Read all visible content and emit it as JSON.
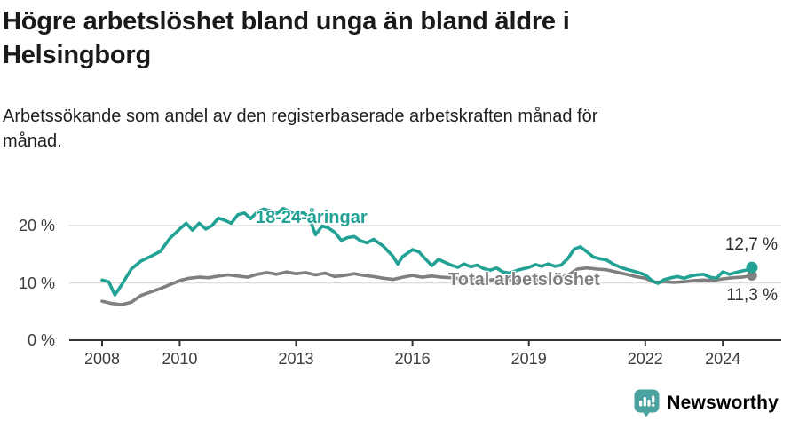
{
  "header": {
    "title": "Högre arbetslöshet bland unga än bland äldre i\nHelsingborg",
    "subtitle": "Arbetssökande som andel av den registerbaserade arbetskraften månad för\nmånad."
  },
  "chart_data": {
    "type": "line",
    "title": "Högre arbetslöshet bland unga än bland äldre i Helsingborg",
    "xlabel": "",
    "ylabel": "Arbetssökande som andel av den registerbaserade arbetskraften",
    "grid": true,
    "legend_position": "inline-labels-on-lines",
    "x_axis": {
      "range": [
        2007.2,
        2025.5
      ],
      "ticks": [
        {
          "label": "2008",
          "year": 2008
        },
        {
          "label": "2010",
          "year": 2010
        },
        {
          "label": "2013",
          "year": 2013
        },
        {
          "label": "2016",
          "year": 2016
        },
        {
          "label": "2019",
          "year": 2019
        },
        {
          "label": "2022",
          "year": 2022
        },
        {
          "label": "2024",
          "year": 2024
        }
      ]
    },
    "y_axis": {
      "range": [
        0,
        25
      ],
      "unit": "%",
      "ticks": [
        {
          "label": "0 %",
          "value": 0
        },
        {
          "label": "10 %",
          "value": 10
        },
        {
          "label": "20 %",
          "value": 20
        }
      ]
    },
    "series": [
      {
        "name": "Total arbetslöshet",
        "color": "#7f7f7f",
        "end_label": "11,3 %",
        "end_value": 11.3,
        "points": [
          [
            2008.0,
            6.8
          ],
          [
            2008.25,
            6.4
          ],
          [
            2008.5,
            6.2
          ],
          [
            2008.75,
            6.6
          ],
          [
            2009.0,
            7.8
          ],
          [
            2009.25,
            8.4
          ],
          [
            2009.5,
            9.0
          ],
          [
            2009.75,
            9.7
          ],
          [
            2010.0,
            10.4
          ],
          [
            2010.25,
            10.8
          ],
          [
            2010.5,
            11.0
          ],
          [
            2010.75,
            10.9
          ],
          [
            2011.0,
            11.2
          ],
          [
            2011.25,
            11.4
          ],
          [
            2011.5,
            11.2
          ],
          [
            2011.75,
            11.0
          ],
          [
            2012.0,
            11.5
          ],
          [
            2012.25,
            11.8
          ],
          [
            2012.5,
            11.5
          ],
          [
            2012.75,
            11.9
          ],
          [
            2013.0,
            11.6
          ],
          [
            2013.25,
            11.8
          ],
          [
            2013.5,
            11.4
          ],
          [
            2013.75,
            11.7
          ],
          [
            2014.0,
            11.1
          ],
          [
            2014.25,
            11.3
          ],
          [
            2014.5,
            11.6
          ],
          [
            2014.75,
            11.3
          ],
          [
            2015.0,
            11.1
          ],
          [
            2015.25,
            10.8
          ],
          [
            2015.5,
            10.6
          ],
          [
            2015.75,
            11.0
          ],
          [
            2016.0,
            11.3
          ],
          [
            2016.25,
            11.0
          ],
          [
            2016.5,
            11.2
          ],
          [
            2016.75,
            11.0
          ],
          [
            2017.0,
            10.9
          ],
          [
            2017.25,
            10.7
          ],
          [
            2017.5,
            10.9
          ],
          [
            2017.75,
            10.6
          ],
          [
            2018.0,
            10.5
          ],
          [
            2018.25,
            10.7
          ],
          [
            2018.5,
            10.4
          ],
          [
            2018.75,
            10.5
          ],
          [
            2019.0,
            10.4
          ],
          [
            2019.25,
            10.6
          ],
          [
            2019.5,
            10.7
          ],
          [
            2019.75,
            10.8
          ],
          [
            2020.0,
            11.3
          ],
          [
            2020.25,
            12.4
          ],
          [
            2020.5,
            12.6
          ],
          [
            2020.75,
            12.4
          ],
          [
            2021.0,
            12.3
          ],
          [
            2021.25,
            11.9
          ],
          [
            2021.5,
            11.5
          ],
          [
            2021.75,
            11.1
          ],
          [
            2022.0,
            10.8
          ],
          [
            2022.25,
            10.1
          ],
          [
            2022.5,
            10.2
          ],
          [
            2022.75,
            10.1
          ],
          [
            2023.0,
            10.2
          ],
          [
            2023.25,
            10.4
          ],
          [
            2023.5,
            10.5
          ],
          [
            2023.75,
            10.4
          ],
          [
            2024.0,
            10.7
          ],
          [
            2024.25,
            10.9
          ],
          [
            2024.5,
            11.0
          ],
          [
            2024.75,
            11.3
          ]
        ]
      },
      {
        "name": "18-24-åringar",
        "color": "#22a295",
        "end_label": "12,7 %",
        "end_value": 12.7,
        "points": [
          [
            2008.0,
            10.5
          ],
          [
            2008.17,
            10.2
          ],
          [
            2008.33,
            7.9
          ],
          [
            2008.5,
            9.6
          ],
          [
            2008.75,
            12.4
          ],
          [
            2009.0,
            13.8
          ],
          [
            2009.25,
            14.6
          ],
          [
            2009.5,
            15.5
          ],
          [
            2009.75,
            17.8
          ],
          [
            2010.0,
            19.4
          ],
          [
            2010.17,
            20.4
          ],
          [
            2010.33,
            19.2
          ],
          [
            2010.5,
            20.4
          ],
          [
            2010.67,
            19.4
          ],
          [
            2010.83,
            20.0
          ],
          [
            2011.0,
            21.3
          ],
          [
            2011.17,
            20.9
          ],
          [
            2011.33,
            20.4
          ],
          [
            2011.5,
            21.9
          ],
          [
            2011.67,
            22.2
          ],
          [
            2011.83,
            21.2
          ],
          [
            2012.0,
            22.4
          ],
          [
            2012.17,
            22.9
          ],
          [
            2012.33,
            22.6
          ],
          [
            2012.5,
            22.1
          ],
          [
            2012.67,
            23.0
          ],
          [
            2012.83,
            22.5
          ],
          [
            2013.0,
            22.0
          ],
          [
            2013.17,
            22.3
          ],
          [
            2013.33,
            21.6
          ],
          [
            2013.5,
            18.4
          ],
          [
            2013.67,
            19.9
          ],
          [
            2013.83,
            19.6
          ],
          [
            2014.0,
            18.8
          ],
          [
            2014.17,
            17.4
          ],
          [
            2014.33,
            17.9
          ],
          [
            2014.5,
            18.1
          ],
          [
            2014.67,
            17.3
          ],
          [
            2014.83,
            17.0
          ],
          [
            2015.0,
            17.6
          ],
          [
            2015.25,
            16.4
          ],
          [
            2015.5,
            14.6
          ],
          [
            2015.62,
            13.3
          ],
          [
            2015.75,
            14.6
          ],
          [
            2016.0,
            15.8
          ],
          [
            2016.17,
            15.4
          ],
          [
            2016.33,
            14.2
          ],
          [
            2016.5,
            13.0
          ],
          [
            2016.67,
            14.1
          ],
          [
            2016.83,
            13.6
          ],
          [
            2017.0,
            13.1
          ],
          [
            2017.17,
            12.7
          ],
          [
            2017.33,
            13.3
          ],
          [
            2017.5,
            12.8
          ],
          [
            2017.67,
            13.1
          ],
          [
            2017.83,
            12.5
          ],
          [
            2018.0,
            12.2
          ],
          [
            2018.17,
            12.6
          ],
          [
            2018.33,
            11.9
          ],
          [
            2018.5,
            11.7
          ],
          [
            2018.75,
            12.3
          ],
          [
            2019.0,
            12.7
          ],
          [
            2019.17,
            13.2
          ],
          [
            2019.33,
            12.9
          ],
          [
            2019.5,
            13.3
          ],
          [
            2019.67,
            12.9
          ],
          [
            2019.83,
            13.1
          ],
          [
            2020.0,
            14.2
          ],
          [
            2020.17,
            15.9
          ],
          [
            2020.33,
            16.3
          ],
          [
            2020.5,
            15.4
          ],
          [
            2020.67,
            14.5
          ],
          [
            2020.83,
            14.2
          ],
          [
            2021.0,
            14.0
          ],
          [
            2021.17,
            13.3
          ],
          [
            2021.33,
            12.8
          ],
          [
            2021.5,
            12.4
          ],
          [
            2021.67,
            12.1
          ],
          [
            2021.83,
            11.8
          ],
          [
            2022.0,
            11.4
          ],
          [
            2022.17,
            10.4
          ],
          [
            2022.33,
            9.9
          ],
          [
            2022.5,
            10.6
          ],
          [
            2022.67,
            10.9
          ],
          [
            2022.83,
            11.1
          ],
          [
            2023.0,
            10.8
          ],
          [
            2023.17,
            11.2
          ],
          [
            2023.33,
            11.4
          ],
          [
            2023.5,
            11.5
          ],
          [
            2023.67,
            11.0
          ],
          [
            2023.83,
            10.8
          ],
          [
            2024.0,
            11.9
          ],
          [
            2024.17,
            11.5
          ],
          [
            2024.33,
            11.8
          ],
          [
            2024.5,
            12.1
          ],
          [
            2024.67,
            12.3
          ],
          [
            2024.75,
            12.7
          ]
        ]
      }
    ],
    "colors": {
      "young_line": "#22a295",
      "total_line": "#7f7f7f",
      "gridline": "#dcdcdc",
      "axis": "#333333",
      "tick_text": "#3d3d3d"
    }
  },
  "footer": {
    "brand": "Newsworthy",
    "brand_color": "#4aa3a1"
  }
}
